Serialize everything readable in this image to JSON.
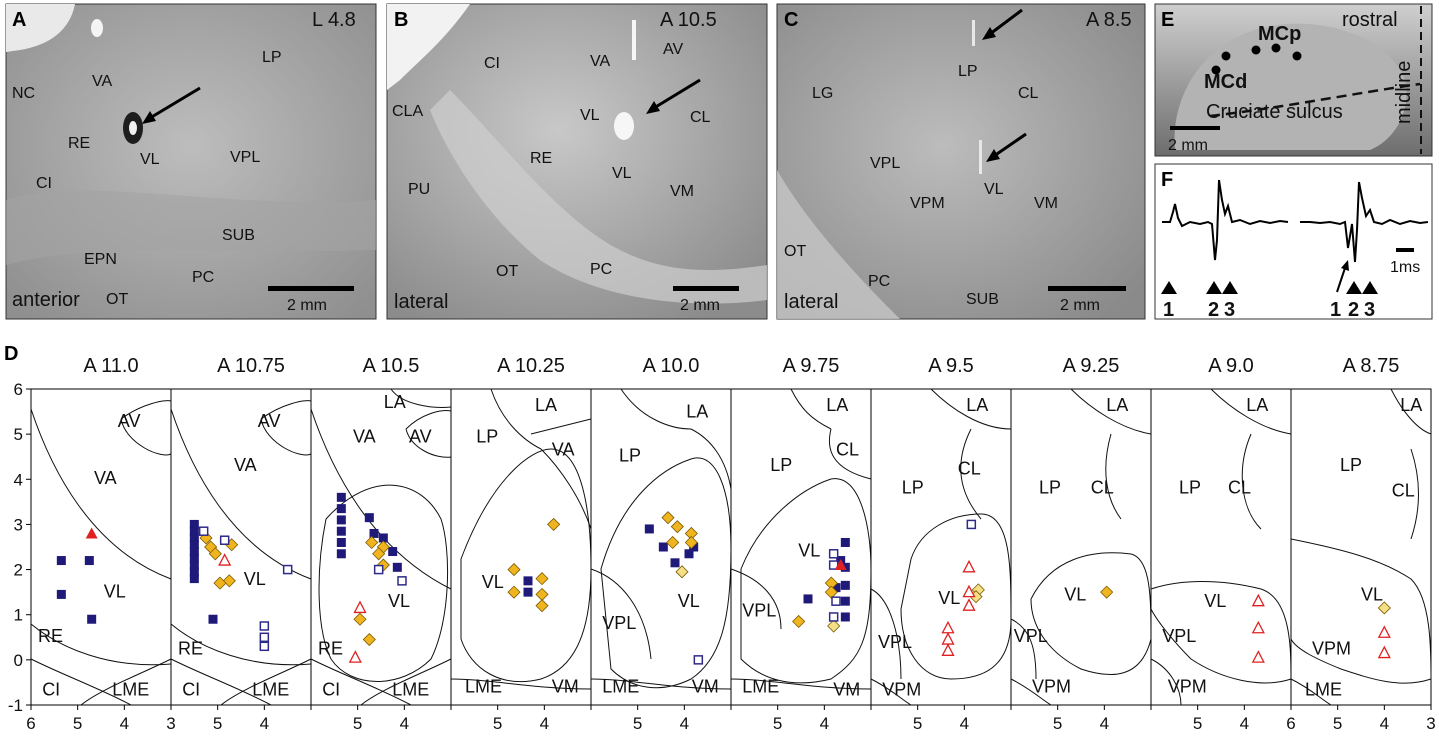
{
  "panels": {
    "A": {
      "letter": "A",
      "section": "L 4.8",
      "regions": [
        "NC",
        "VA",
        "LP",
        "RE",
        "VL",
        "VPL",
        "CI",
        "EPN",
        "SUB",
        "PC",
        "OT"
      ],
      "orientation": "anterior",
      "scalebar": "2 mm"
    },
    "B": {
      "letter": "B",
      "section": "A 10.5",
      "regions": [
        "CI",
        "VA",
        "AV",
        "CLA",
        "VL",
        "CL",
        "RE",
        "PU",
        "VL",
        "VM",
        "OT",
        "PC"
      ],
      "orientation": "lateral",
      "scalebar": "2 mm"
    },
    "C": {
      "letter": "C",
      "section": "A 8.5",
      "regions": [
        "LG",
        "LP",
        "CL",
        "VPL",
        "VL",
        "VPM",
        "VM",
        "OT",
        "PC",
        "SUB"
      ],
      "orientation": "lateral",
      "scalebar": "2 mm"
    },
    "E": {
      "letter": "E",
      "labels": [
        "rostral",
        "MCp",
        "MCd",
        "Cruciate sulcus",
        "midline"
      ],
      "scalebar": "2 mm"
    },
    "F": {
      "letter": "F",
      "scalebar": "1ms",
      "markers_left": [
        "1",
        "2",
        "3"
      ],
      "markers_right": [
        "1",
        "2",
        "3"
      ]
    }
  },
  "chart_data": {
    "letter": "D",
    "type": "scatter",
    "x_ticks": [
      "6",
      "5",
      "4",
      "3"
    ],
    "y_ticks": [
      "6",
      "5",
      "4",
      "3",
      "2",
      "1",
      "0",
      "-1"
    ],
    "xlim": [
      6,
      3
    ],
    "ylim": [
      -1,
      6
    ],
    "colors": {
      "filled_square": "#1f1a7a",
      "open_square": "#2e2a8a",
      "diamond": "#f0b41e",
      "light_diamond": "#f5df86",
      "triangle": "#e02020"
    },
    "sections": [
      {
        "title": "A 11.0",
        "regions": [
          "AV",
          "VA",
          "VL",
          "RE",
          "CI",
          "LME"
        ],
        "points": [
          {
            "x": 5.35,
            "y": 2.2,
            "m": "fsq"
          },
          {
            "x": 5.35,
            "y": 1.45,
            "m": "fsq"
          },
          {
            "x": 4.75,
            "y": 2.2,
            "m": "fsq"
          },
          {
            "x": 4.7,
            "y": 0.9,
            "m": "fsq"
          },
          {
            "x": 4.7,
            "y": 2.8,
            "m": "ftri"
          }
        ]
      },
      {
        "title": "A 10.75",
        "regions": [
          "AV",
          "VA",
          "VL",
          "RE",
          "CI",
          "LME"
        ],
        "points": [
          {
            "x": 5.5,
            "y": 3.0,
            "m": "fsq"
          },
          {
            "x": 5.5,
            "y": 2.85,
            "m": "fsq"
          },
          {
            "x": 5.5,
            "y": 2.7,
            "m": "fsq"
          },
          {
            "x": 5.5,
            "y": 2.55,
            "m": "fsq"
          },
          {
            "x": 5.5,
            "y": 2.4,
            "m": "fsq"
          },
          {
            "x": 5.5,
            "y": 2.25,
            "m": "fsq"
          },
          {
            "x": 5.5,
            "y": 2.1,
            "m": "fsq"
          },
          {
            "x": 5.5,
            "y": 1.95,
            "m": "fsq"
          },
          {
            "x": 5.5,
            "y": 1.8,
            "m": "fsq"
          },
          {
            "x": 5.1,
            "y": 0.9,
            "m": "fsq"
          },
          {
            "x": 5.25,
            "y": 2.7,
            "m": "dia"
          },
          {
            "x": 5.15,
            "y": 2.5,
            "m": "dia"
          },
          {
            "x": 5.05,
            "y": 2.35,
            "m": "dia"
          },
          {
            "x": 4.7,
            "y": 2.55,
            "m": "dia"
          },
          {
            "x": 4.75,
            "y": 1.75,
            "m": "dia"
          },
          {
            "x": 4.95,
            "y": 1.7,
            "m": "dia"
          },
          {
            "x": 5.3,
            "y": 2.85,
            "m": "osq"
          },
          {
            "x": 4.85,
            "y": 2.65,
            "m": "osq"
          },
          {
            "x": 3.5,
            "y": 2.0,
            "m": "osq"
          },
          {
            "x": 4.0,
            "y": 0.75,
            "m": "osq"
          },
          {
            "x": 4.0,
            "y": 0.5,
            "m": "osq"
          },
          {
            "x": 4.0,
            "y": 0.3,
            "m": "osq"
          },
          {
            "x": 4.85,
            "y": 2.2,
            "m": "otri"
          }
        ]
      },
      {
        "title": "A 10.5",
        "regions": [
          "LA",
          "VA",
          "AV",
          "VL",
          "RE",
          "CI",
          "LME"
        ],
        "points": [
          {
            "x": 5.35,
            "y": 3.6,
            "m": "fsq"
          },
          {
            "x": 5.35,
            "y": 3.35,
            "m": "fsq"
          },
          {
            "x": 5.35,
            "y": 3.1,
            "m": "fsq"
          },
          {
            "x": 5.35,
            "y": 2.85,
            "m": "fsq"
          },
          {
            "x": 5.35,
            "y": 2.6,
            "m": "fsq"
          },
          {
            "x": 5.35,
            "y": 2.35,
            "m": "fsq"
          },
          {
            "x": 4.75,
            "y": 3.15,
            "m": "fsq"
          },
          {
            "x": 4.65,
            "y": 2.8,
            "m": "fsq"
          },
          {
            "x": 4.45,
            "y": 2.7,
            "m": "fsq"
          },
          {
            "x": 4.25,
            "y": 2.4,
            "m": "fsq"
          },
          {
            "x": 4.15,
            "y": 2.05,
            "m": "fsq"
          },
          {
            "x": 4.7,
            "y": 2.6,
            "m": "dia"
          },
          {
            "x": 4.45,
            "y": 2.5,
            "m": "dia"
          },
          {
            "x": 4.55,
            "y": 2.35,
            "m": "dia"
          },
          {
            "x": 4.45,
            "y": 2.1,
            "m": "dia"
          },
          {
            "x": 4.95,
            "y": 0.9,
            "m": "dia"
          },
          {
            "x": 4.75,
            "y": 0.45,
            "m": "dia"
          },
          {
            "x": 4.55,
            "y": 2.0,
            "m": "osq"
          },
          {
            "x": 4.05,
            "y": 1.75,
            "m": "osq"
          },
          {
            "x": 4.95,
            "y": 1.15,
            "m": "otri"
          },
          {
            "x": 5.05,
            "y": 0.05,
            "m": "otri"
          }
        ]
      },
      {
        "title": "A 10.25",
        "regions": [
          "LA",
          "LP",
          "VA",
          "VL",
          "LME",
          "VM"
        ],
        "points": [
          {
            "x": 4.35,
            "y": 1.75,
            "m": "fsq"
          },
          {
            "x": 4.35,
            "y": 1.5,
            "m": "fsq"
          },
          {
            "x": 4.65,
            "y": 2.0,
            "m": "dia"
          },
          {
            "x": 4.65,
            "y": 1.5,
            "m": "dia"
          },
          {
            "x": 4.05,
            "y": 1.8,
            "m": "dia"
          },
          {
            "x": 4.05,
            "y": 1.45,
            "m": "dia"
          },
          {
            "x": 4.05,
            "y": 1.2,
            "m": "dia"
          },
          {
            "x": 3.8,
            "y": 3.0,
            "m": "dia"
          }
        ]
      },
      {
        "title": "A 10.0",
        "regions": [
          "LA",
          "LP",
          "VL",
          "VPL",
          "LME",
          "VM"
        ],
        "points": [
          {
            "x": 4.75,
            "y": 2.9,
            "m": "fsq"
          },
          {
            "x": 4.45,
            "y": 2.5,
            "m": "fsq"
          },
          {
            "x": 4.2,
            "y": 2.15,
            "m": "fsq"
          },
          {
            "x": 3.9,
            "y": 2.35,
            "m": "fsq"
          },
          {
            "x": 3.8,
            "y": 2.5,
            "m": "fsq"
          },
          {
            "x": 4.35,
            "y": 3.15,
            "m": "dia"
          },
          {
            "x": 4.15,
            "y": 2.95,
            "m": "dia"
          },
          {
            "x": 4.25,
            "y": 2.6,
            "m": "dia"
          },
          {
            "x": 3.85,
            "y": 2.8,
            "m": "dia"
          },
          {
            "x": 3.85,
            "y": 2.6,
            "m": "dia"
          },
          {
            "x": 4.05,
            "y": 1.95,
            "m": "ldia"
          },
          {
            "x": 3.7,
            "y": 0.0,
            "m": "osq"
          }
        ]
      },
      {
        "title": "A 9.75",
        "regions": [
          "LA",
          "LP",
          "CL",
          "VL",
          "VPL",
          "LME",
          "VM"
        ],
        "points": [
          {
            "x": 4.35,
            "y": 1.35,
            "m": "fsq"
          },
          {
            "x": 3.65,
            "y": 2.2,
            "m": "fsq"
          },
          {
            "x": 3.55,
            "y": 2.6,
            "m": "fsq"
          },
          {
            "x": 3.55,
            "y": 2.05,
            "m": "fsq"
          },
          {
            "x": 3.55,
            "y": 1.65,
            "m": "fsq"
          },
          {
            "x": 3.55,
            "y": 1.3,
            "m": "fsq"
          },
          {
            "x": 3.55,
            "y": 0.95,
            "m": "fsq"
          },
          {
            "x": 3.75,
            "y": 1.6,
            "m": "fsq"
          },
          {
            "x": 4.55,
            "y": 0.85,
            "m": "dia"
          },
          {
            "x": 3.85,
            "y": 1.7,
            "m": "dia"
          },
          {
            "x": 3.85,
            "y": 1.5,
            "m": "dia"
          },
          {
            "x": 3.8,
            "y": 0.75,
            "m": "ldia"
          },
          {
            "x": 3.8,
            "y": 2.35,
            "m": "osq"
          },
          {
            "x": 3.8,
            "y": 2.1,
            "m": "osq"
          },
          {
            "x": 3.75,
            "y": 1.3,
            "m": "osq"
          },
          {
            "x": 3.8,
            "y": 0.95,
            "m": "osq"
          },
          {
            "x": 3.65,
            "y": 2.1,
            "m": "ftri"
          }
        ]
      },
      {
        "title": "A 9.5",
        "regions": [
          "LA",
          "CL",
          "LP",
          "VL",
          "VPL",
          "VPM"
        ],
        "points": [
          {
            "x": 3.85,
            "y": 3.0,
            "m": "osq"
          },
          {
            "x": 3.7,
            "y": 1.55,
            "m": "ldia"
          },
          {
            "x": 3.75,
            "y": 1.4,
            "m": "ldia"
          },
          {
            "x": 4.35,
            "y": 0.7,
            "m": "otri"
          },
          {
            "x": 4.35,
            "y": 0.45,
            "m": "otri"
          },
          {
            "x": 4.35,
            "y": 0.2,
            "m": "otri"
          },
          {
            "x": 3.9,
            "y": 2.05,
            "m": "otri"
          },
          {
            "x": 3.9,
            "y": 1.5,
            "m": "otri"
          },
          {
            "x": 3.9,
            "y": 1.2,
            "m": "otri"
          }
        ]
      },
      {
        "title": "A 9.25",
        "regions": [
          "LA",
          "LP",
          "CL",
          "VL",
          "VPL",
          "VPM"
        ],
        "points": [
          {
            "x": 3.95,
            "y": 1.5,
            "m": "dia"
          }
        ]
      },
      {
        "title": "A 9.0",
        "regions": [
          "LA",
          "LP",
          "CL",
          "VL",
          "VPL",
          "VPM"
        ],
        "points": [
          {
            "x": 3.7,
            "y": 1.3,
            "m": "otri"
          },
          {
            "x": 3.7,
            "y": 0.7,
            "m": "otri"
          },
          {
            "x": 3.7,
            "y": 0.05,
            "m": "otri"
          }
        ]
      },
      {
        "title": "A 8.75",
        "regions": [
          "LA",
          "LP",
          "CL",
          "VL",
          "VPM",
          "LME"
        ],
        "points": [
          {
            "x": 4.0,
            "y": 1.15,
            "m": "ldia"
          },
          {
            "x": 4.0,
            "y": 0.6,
            "m": "otri"
          },
          {
            "x": 4.0,
            "y": 0.15,
            "m": "otri"
          }
        ]
      }
    ]
  }
}
